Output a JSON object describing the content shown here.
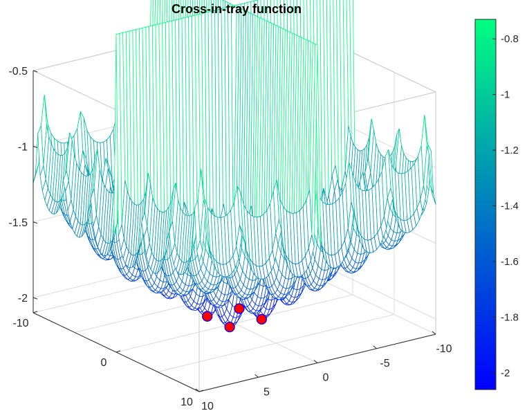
{
  "chart_data": {
    "type": "surface3d",
    "title": "Cross-in-tray function",
    "function": "f(x,y) = -0.0001*(|sin(x)*sin(y)*exp(|100 - sqrt(x^2+y^2)/pi|)| + 1)^0.1",
    "xlim": [
      -10,
      10
    ],
    "ylim": [
      -10,
      10
    ],
    "zlim": [
      -2.1,
      -0.5
    ],
    "x_ticks": [
      "10",
      "5",
      "0",
      "-5",
      "-10"
    ],
    "x_tick_values": [
      10,
      5,
      0,
      -5,
      -10
    ],
    "y_ticks": [
      "-10",
      "0",
      "10"
    ],
    "y_tick_values": [
      -10,
      0,
      10
    ],
    "z_ticks": [
      "-0.5",
      "-1",
      "-1.5",
      "-2"
    ],
    "z_tick_values": [
      -0.5,
      -1,
      -1.5,
      -2
    ],
    "grid": true,
    "colormap": [
      "#0000ff",
      "#00ff80"
    ],
    "colorbar": {
      "range": [
        -2.06,
        -0.73
      ],
      "tick_labels": [
        "-0.8",
        "-1",
        "-1.2",
        "-1.4",
        "-1.6",
        "-1.8",
        "-2"
      ],
      "tick_values": [
        -0.8,
        -1.0,
        -1.2,
        -1.4,
        -1.6,
        -1.8,
        -2.0
      ]
    },
    "minima": [
      {
        "x": 1.35,
        "y": 1.35,
        "z": -2.0626
      },
      {
        "x": -1.35,
        "y": 1.35,
        "z": -2.0626
      },
      {
        "x": 1.35,
        "y": -1.35,
        "z": -2.0626
      },
      {
        "x": -1.35,
        "y": -1.35,
        "z": -2.0626
      }
    ],
    "marker_color": "#ff0000",
    "marker_edge": "#0000ff"
  }
}
